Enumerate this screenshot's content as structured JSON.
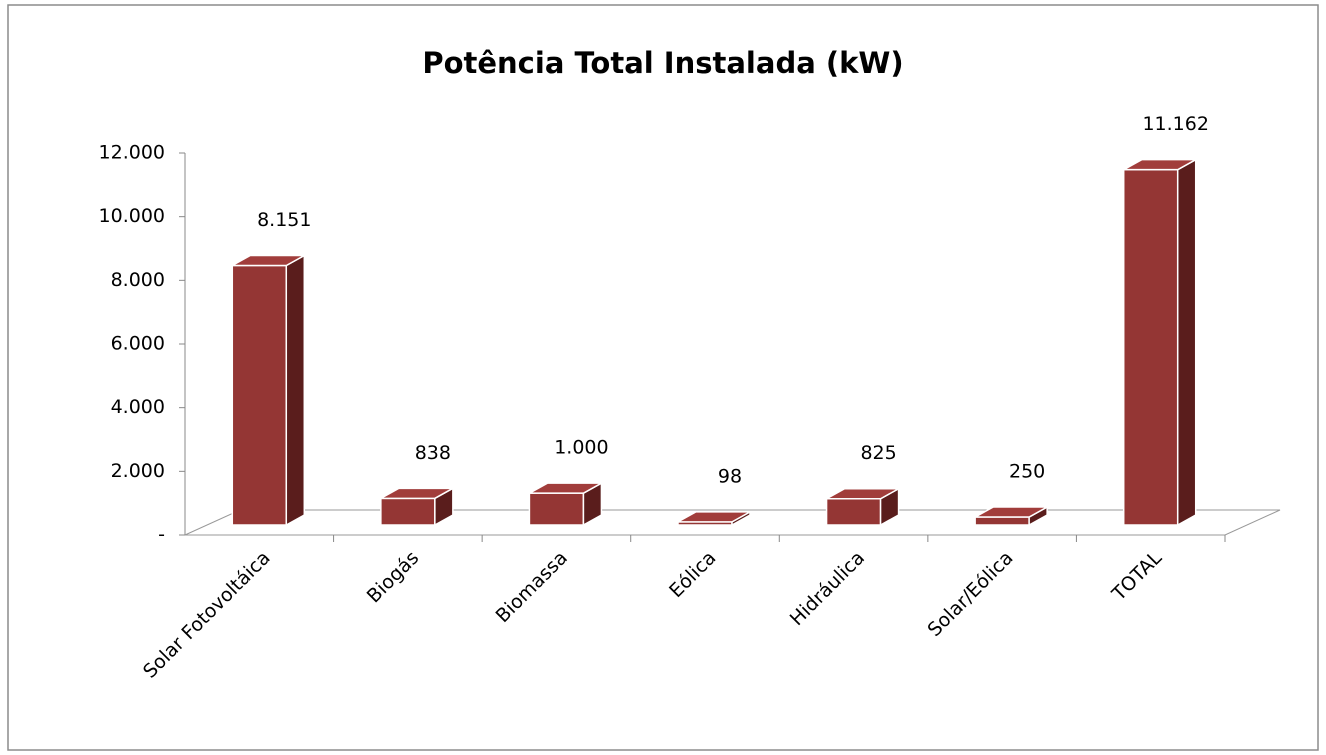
{
  "chart_data": {
    "type": "bar3d",
    "title": "Potência Total Instalada (kW)",
    "categories": [
      "Solar Fotovoltáica",
      "Biogás",
      "Biomassa",
      "Eólica",
      "Hidráulica",
      "Solar/Eólica",
      "TOTAL"
    ],
    "values": [
      8151,
      838,
      1000,
      98,
      825,
      250,
      11162
    ],
    "value_labels": [
      "8.151",
      "838",
      "1.000",
      "98",
      "825",
      "250",
      "11.162"
    ],
    "color": "#943634",
    "ylim": [
      0,
      12000
    ],
    "yticks": [
      {
        "value": 0,
        "label": "-"
      },
      {
        "value": 2000,
        "label": "2.000"
      },
      {
        "value": 4000,
        "label": "4.000"
      },
      {
        "value": 6000,
        "label": "6.000"
      },
      {
        "value": 8000,
        "label": "8.000"
      },
      {
        "value": 10000,
        "label": "10.000"
      },
      {
        "value": 12000,
        "label": "12.000"
      }
    ]
  }
}
